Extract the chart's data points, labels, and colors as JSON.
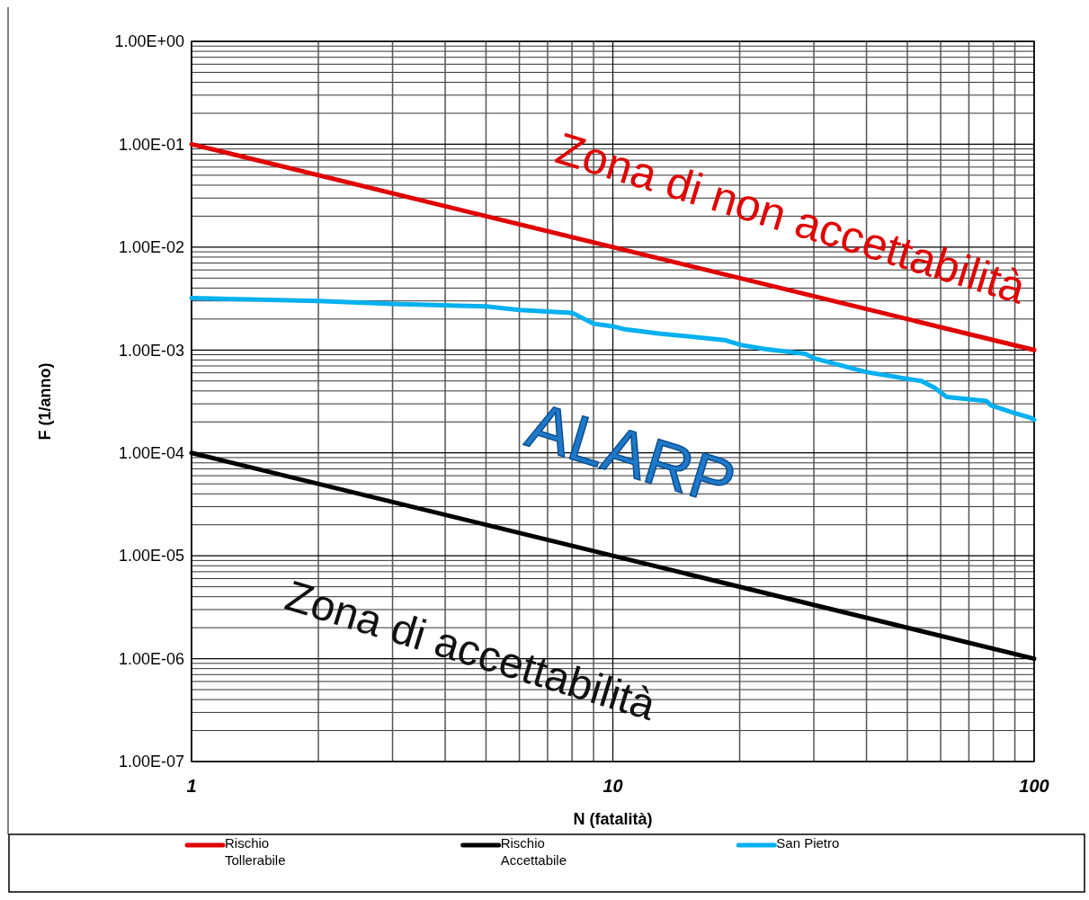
{
  "chart_data": {
    "type": "line",
    "xlabel": "N (fatalità)",
    "ylabel": "F (1/anno)",
    "log": "xy",
    "grid": true,
    "legend": "bottom",
    "line_style": "solid",
    "xlim": [
      1,
      100
    ],
    "xticks": [
      1,
      10,
      100
    ],
    "ylim": [
      1e-07,
      1
    ],
    "yticks": [
      {
        "value": 1e-07,
        "label": "1.00E-07"
      },
      {
        "value": 1e-06,
        "label": "1.00E-06"
      },
      {
        "value": 1e-05,
        "label": "1.00E-05"
      },
      {
        "value": 0.0001,
        "label": "1.00E-04"
      },
      {
        "value": 0.001,
        "label": "1.00E-03"
      },
      {
        "value": 0.01,
        "label": "1.00E-02"
      },
      {
        "value": 0.1,
        "label": "1.00E-01"
      },
      {
        "value": 1,
        "label": "1.00E+00"
      }
    ],
    "series": [
      {
        "name": "Rischio Tollerabile",
        "color": "#e00000",
        "x": [
          1,
          100
        ],
        "values": [
          0.1,
          0.001
        ]
      },
      {
        "name": "Rischio Accettabile",
        "color": "#000000",
        "x": [
          1,
          100
        ],
        "values": [
          0.0001,
          1e-06
        ]
      },
      {
        "name": "San Pietro",
        "color": "#00b0f0",
        "x": [
          1,
          2,
          3,
          5,
          6,
          8,
          9,
          10,
          10.6,
          13,
          18.4,
          20.1,
          23,
          28.6,
          30.1,
          40,
          50.6,
          54,
          58,
          62,
          77,
          79,
          88,
          98,
          100
        ],
        "values": [
          0.0032,
          0.003,
          0.0028,
          0.00265,
          0.00245,
          0.0023,
          0.0018,
          0.0017,
          0.0016,
          0.00144,
          0.00125,
          0.00112,
          0.00102,
          0.00092,
          0.00083,
          0.00061,
          0.00052,
          0.0005,
          0.00043,
          0.00035,
          0.00032,
          0.00029,
          0.00025,
          0.00022,
          0.00021
        ]
      }
    ],
    "annotations": [
      "Zona di non accettabilità",
      "ALARP",
      "Zona di accettabilità"
    ]
  }
}
